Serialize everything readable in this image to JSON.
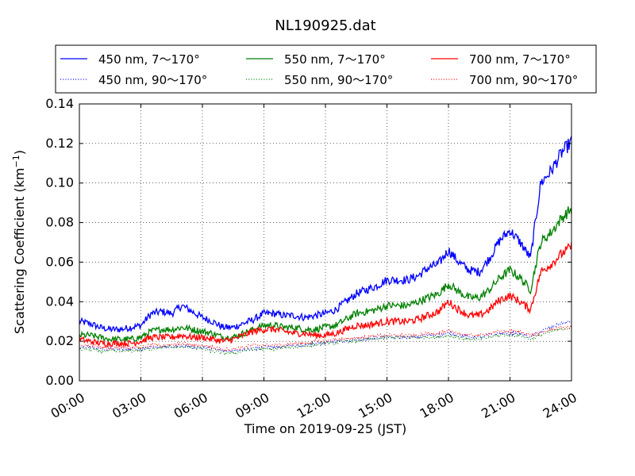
{
  "chart_data": {
    "type": "line",
    "title": "NL190925.dat",
    "xlabel": "Time on 2019-09-25 (JST)",
    "ylabel_main": "Scattering Coefficient (km",
    "ylabel_sup": "−1",
    "ylabel_end": ")",
    "xlim": [
      0,
      24
    ],
    "ylim": [
      0,
      0.14
    ],
    "grid": true,
    "legend_position": "top",
    "x_ticks": [
      0,
      3,
      6,
      9,
      12,
      15,
      18,
      21,
      24
    ],
    "x_tick_labels": [
      "00:00",
      "03:00",
      "06:00",
      "09:00",
      "12:00",
      "15:00",
      "18:00",
      "21:00",
      "24:00"
    ],
    "y_ticks": [
      0,
      0.02,
      0.04,
      0.06,
      0.08,
      0.1,
      0.12,
      0.14
    ],
    "y_tick_labels": [
      "0.00",
      "0.02",
      "0.04",
      "0.06",
      "0.08",
      "0.10",
      "0.12",
      "0.14"
    ],
    "series": [
      {
        "name": "450 nm, 7～170°",
        "color": "#0000ff",
        "style": "solid",
        "x": [
          0,
          0.5,
          1,
          1.5,
          2,
          2.5,
          3,
          3.5,
          4,
          4.5,
          5,
          5.5,
          6,
          6.5,
          7,
          7.5,
          8,
          8.5,
          9,
          9.5,
          10,
          10.5,
          11,
          11.5,
          12,
          12.5,
          13,
          13.5,
          14,
          14.5,
          15,
          15.5,
          16,
          16.5,
          17,
          17.5,
          18,
          18.5,
          19,
          19.5,
          20,
          20.5,
          21,
          21.5,
          22,
          22.5,
          23,
          23.5,
          24
        ],
        "y": [
          0.03,
          0.029,
          0.027,
          0.026,
          0.026,
          0.027,
          0.028,
          0.034,
          0.035,
          0.034,
          0.038,
          0.035,
          0.032,
          0.03,
          0.027,
          0.027,
          0.029,
          0.031,
          0.034,
          0.034,
          0.033,
          0.033,
          0.032,
          0.033,
          0.034,
          0.036,
          0.04,
          0.044,
          0.046,
          0.048,
          0.051,
          0.051,
          0.051,
          0.053,
          0.057,
          0.059,
          0.066,
          0.06,
          0.056,
          0.055,
          0.062,
          0.071,
          0.076,
          0.07,
          0.062,
          0.1,
          0.106,
          0.115,
          0.121
        ]
      },
      {
        "name": "550 nm, 7～170°",
        "color": "#008000",
        "style": "solid",
        "x": [
          0,
          0.5,
          1,
          1.5,
          2,
          2.5,
          3,
          3.5,
          4,
          4.5,
          5,
          5.5,
          6,
          6.5,
          7,
          7.5,
          8,
          8.5,
          9,
          9.5,
          10,
          10.5,
          11,
          11.5,
          12,
          12.5,
          13,
          13.5,
          14,
          14.5,
          15,
          15.5,
          16,
          16.5,
          17,
          17.5,
          18,
          18.5,
          19,
          19.5,
          20,
          20.5,
          21,
          21.5,
          22,
          22.5,
          23,
          23.5,
          24
        ],
        "y": [
          0.023,
          0.023,
          0.022,
          0.021,
          0.021,
          0.021,
          0.022,
          0.025,
          0.026,
          0.026,
          0.027,
          0.026,
          0.025,
          0.024,
          0.022,
          0.022,
          0.024,
          0.026,
          0.028,
          0.028,
          0.027,
          0.027,
          0.026,
          0.026,
          0.027,
          0.028,
          0.031,
          0.034,
          0.035,
          0.036,
          0.038,
          0.038,
          0.038,
          0.04,
          0.042,
          0.044,
          0.049,
          0.045,
          0.042,
          0.042,
          0.046,
          0.052,
          0.056,
          0.052,
          0.046,
          0.07,
          0.075,
          0.082,
          0.087
        ]
      },
      {
        "name": "700 nm, 7～170°",
        "color": "#ff0000",
        "style": "solid",
        "x": [
          0,
          0.5,
          1,
          1.5,
          2,
          2.5,
          3,
          3.5,
          4,
          4.5,
          5,
          5.5,
          6,
          6.5,
          7,
          7.5,
          8,
          8.5,
          9,
          9.5,
          10,
          10.5,
          11,
          11.5,
          12,
          12.5,
          13,
          13.5,
          14,
          14.5,
          15,
          15.5,
          16,
          16.5,
          17,
          17.5,
          18,
          18.5,
          19,
          19.5,
          20,
          20.5,
          21,
          21.5,
          22,
          22.5,
          23,
          23.5,
          24
        ],
        "y": [
          0.021,
          0.02,
          0.019,
          0.019,
          0.019,
          0.019,
          0.02,
          0.022,
          0.022,
          0.022,
          0.023,
          0.022,
          0.022,
          0.021,
          0.02,
          0.021,
          0.023,
          0.025,
          0.026,
          0.026,
          0.025,
          0.024,
          0.024,
          0.023,
          0.023,
          0.024,
          0.026,
          0.028,
          0.028,
          0.029,
          0.03,
          0.03,
          0.03,
          0.031,
          0.033,
          0.035,
          0.04,
          0.036,
          0.033,
          0.033,
          0.036,
          0.041,
          0.043,
          0.04,
          0.036,
          0.055,
          0.059,
          0.064,
          0.068
        ]
      },
      {
        "name": "450 nm, 90～170°",
        "color": "#0000ff",
        "style": "dotted",
        "x": [
          0,
          0.5,
          1,
          1.5,
          2,
          2.5,
          3,
          3.5,
          4,
          4.5,
          5,
          5.5,
          6,
          6.5,
          7,
          7.5,
          8,
          8.5,
          9,
          9.5,
          10,
          10.5,
          11,
          11.5,
          12,
          12.5,
          13,
          13.5,
          14,
          14.5,
          15,
          15.5,
          16,
          16.5,
          17,
          17.5,
          18,
          18.5,
          19,
          19.5,
          20,
          20.5,
          21,
          21.5,
          22,
          22.5,
          23,
          23.5,
          24
        ],
        "y": [
          0.017,
          0.017,
          0.016,
          0.016,
          0.016,
          0.016,
          0.016,
          0.017,
          0.017,
          0.017,
          0.018,
          0.017,
          0.017,
          0.016,
          0.015,
          0.015,
          0.016,
          0.016,
          0.017,
          0.017,
          0.017,
          0.018,
          0.018,
          0.019,
          0.019,
          0.02,
          0.02,
          0.021,
          0.021,
          0.022,
          0.022,
          0.022,
          0.022,
          0.022,
          0.023,
          0.023,
          0.024,
          0.023,
          0.022,
          0.022,
          0.023,
          0.024,
          0.024,
          0.024,
          0.022,
          0.025,
          0.027,
          0.029,
          0.03
        ]
      },
      {
        "name": "550 nm, 90～170°",
        "color": "#008000",
        "style": "dotted",
        "x": [
          0,
          0.5,
          1,
          1.5,
          2,
          2.5,
          3,
          3.5,
          4,
          4.5,
          5,
          5.5,
          6,
          6.5,
          7,
          7.5,
          8,
          8.5,
          9,
          9.5,
          10,
          10.5,
          11,
          11.5,
          12,
          12.5,
          13,
          13.5,
          14,
          14.5,
          15,
          15.5,
          16,
          16.5,
          17,
          17.5,
          18,
          18.5,
          19,
          19.5,
          20,
          20.5,
          21,
          21.5,
          22,
          22.5,
          23,
          23.5,
          24
        ],
        "y": [
          0.016,
          0.016,
          0.015,
          0.015,
          0.015,
          0.015,
          0.016,
          0.016,
          0.017,
          0.017,
          0.017,
          0.017,
          0.016,
          0.015,
          0.014,
          0.014,
          0.015,
          0.016,
          0.016,
          0.016,
          0.017,
          0.017,
          0.018,
          0.018,
          0.019,
          0.019,
          0.02,
          0.02,
          0.021,
          0.021,
          0.022,
          0.022,
          0.022,
          0.022,
          0.022,
          0.022,
          0.023,
          0.022,
          0.021,
          0.021,
          0.022,
          0.023,
          0.023,
          0.023,
          0.021,
          0.023,
          0.025,
          0.026,
          0.027
        ]
      },
      {
        "name": "700 nm, 90～170°",
        "color": "#ff0000",
        "style": "dotted",
        "x": [
          0,
          0.5,
          1,
          1.5,
          2,
          2.5,
          3,
          3.5,
          4,
          4.5,
          5,
          5.5,
          6,
          6.5,
          7,
          7.5,
          8,
          8.5,
          9,
          9.5,
          10,
          10.5,
          11,
          11.5,
          12,
          12.5,
          13,
          13.5,
          14,
          14.5,
          15,
          15.5,
          16,
          16.5,
          17,
          17.5,
          18,
          18.5,
          19,
          19.5,
          20,
          20.5,
          21,
          21.5,
          22,
          22.5,
          23,
          23.5,
          24
        ],
        "y": [
          0.018,
          0.018,
          0.017,
          0.017,
          0.017,
          0.017,
          0.017,
          0.018,
          0.018,
          0.018,
          0.019,
          0.018,
          0.018,
          0.017,
          0.016,
          0.016,
          0.017,
          0.018,
          0.018,
          0.018,
          0.018,
          0.019,
          0.019,
          0.02,
          0.02,
          0.021,
          0.021,
          0.022,
          0.022,
          0.023,
          0.023,
          0.023,
          0.023,
          0.023,
          0.024,
          0.024,
          0.025,
          0.024,
          0.023,
          0.023,
          0.024,
          0.025,
          0.025,
          0.025,
          0.023,
          0.024,
          0.026,
          0.027,
          0.027
        ]
      }
    ]
  }
}
